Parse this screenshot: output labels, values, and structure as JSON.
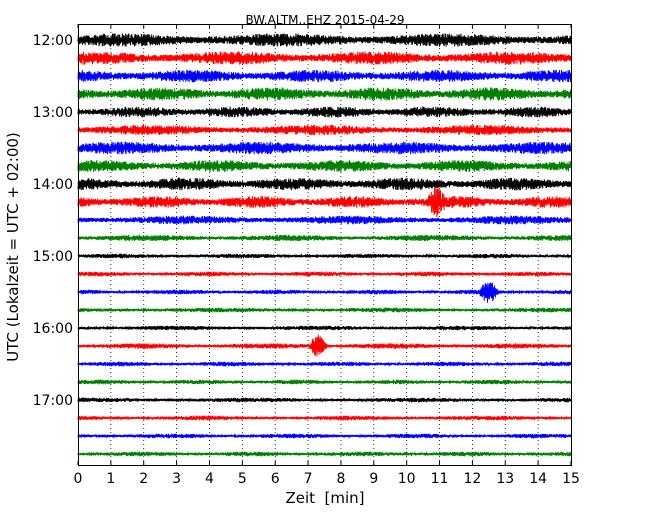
{
  "chart_data": {
    "type": "line",
    "title": "BW.ALTM..EHZ 2015-04-29",
    "xlabel": "Zeit  [min]",
    "ylabel": "UTC (Lokalzeit = UTC + 02:00)",
    "xlim": [
      0,
      15
    ],
    "x_ticks": [
      "0",
      "1",
      "2",
      "3",
      "4",
      "5",
      "6",
      "7",
      "8",
      "9",
      "10",
      "11",
      "12",
      "13",
      "14",
      "15"
    ],
    "y_ticks": [
      "12:00",
      "13:00",
      "14:00",
      "15:00",
      "16:00",
      "17:00"
    ],
    "grid": "vertical dotted at each minute",
    "trace_interval_min": 15,
    "color_cycle": [
      "#000000",
      "#ff0000",
      "#0000ff",
      "#008000"
    ],
    "traces": [
      {
        "start": "12:00",
        "amplitude": 0.85
      },
      {
        "start": "12:15",
        "amplitude": 0.85
      },
      {
        "start": "12:30",
        "amplitude": 0.8
      },
      {
        "start": "12:45",
        "amplitude": 0.85
      },
      {
        "start": "13:00",
        "amplitude": 0.7
      },
      {
        "start": "13:15",
        "amplitude": 0.65
      },
      {
        "start": "13:30",
        "amplitude": 0.8
      },
      {
        "start": "13:45",
        "amplitude": 0.75
      },
      {
        "start": "14:00",
        "amplitude": 0.8
      },
      {
        "start": "14:15",
        "amplitude": 0.75,
        "event_at_min": 10.9
      },
      {
        "start": "14:30",
        "amplitude": 0.55
      },
      {
        "start": "14:45",
        "amplitude": 0.4
      },
      {
        "start": "15:00",
        "amplitude": 0.3
      },
      {
        "start": "15:15",
        "amplitude": 0.3
      },
      {
        "start": "15:30",
        "amplitude": 0.3,
        "event_at_min": 12.5
      },
      {
        "start": "15:45",
        "amplitude": 0.3
      },
      {
        "start": "16:00",
        "amplitude": 0.3
      },
      {
        "start": "16:15",
        "amplitude": 0.35,
        "event_at_min": 7.3
      },
      {
        "start": "16:30",
        "amplitude": 0.3
      },
      {
        "start": "16:45",
        "amplitude": 0.3
      },
      {
        "start": "17:00",
        "amplitude": 0.3
      },
      {
        "start": "17:15",
        "amplitude": 0.3
      },
      {
        "start": "17:30",
        "amplitude": 0.3
      },
      {
        "start": "17:45",
        "amplitude": 0.3
      }
    ]
  }
}
